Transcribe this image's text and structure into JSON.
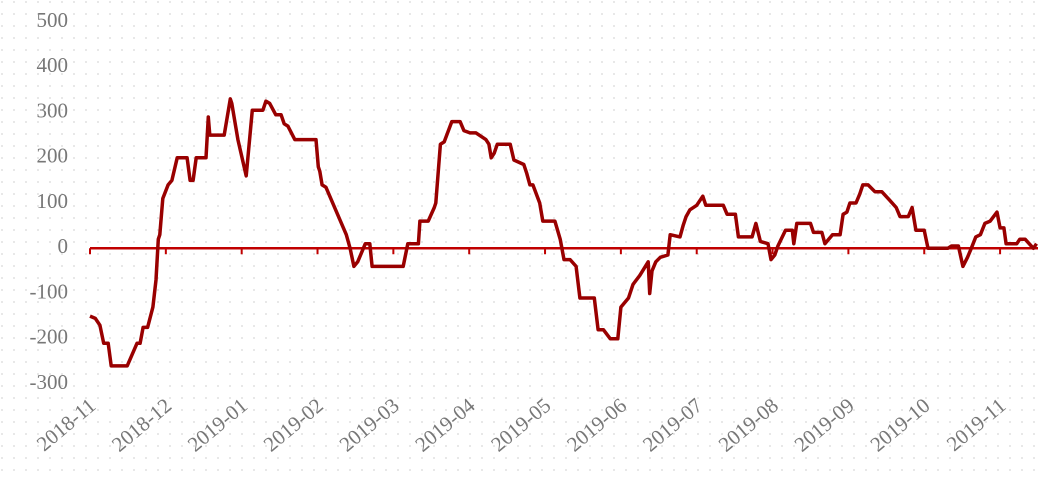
{
  "chart_data": {
    "type": "line",
    "x": [
      0,
      0.07,
      0.13,
      0.18,
      0.24,
      0.28,
      0.49,
      0.62,
      0.66,
      0.7,
      0.76,
      0.83,
      0.87,
      0.9,
      0.92,
      0.96,
      1.03,
      1.08,
      1.15,
      1.28,
      1.32,
      1.36,
      1.4,
      1.53,
      1.56,
      1.58,
      1.77,
      1.85,
      1.87,
      1.95,
      2.06,
      2.14,
      2.28,
      2.32,
      2.37,
      2.45,
      2.52,
      2.56,
      2.61,
      2.7,
      2.98,
      3.01,
      3.03,
      3.06,
      3.11,
      3.38,
      3.43,
      3.48,
      3.53,
      3.63,
      3.69,
      3.72,
      4.13,
      4.19,
      4.33,
      4.35,
      4.46,
      4.54,
      4.56,
      4.62,
      4.67,
      4.77,
      4.88,
      4.93,
      5.01,
      5.09,
      5.22,
      5.26,
      5.29,
      5.33,
      5.37,
      5.54,
      5.59,
      5.72,
      5.76,
      5.8,
      5.84,
      5.93,
      5.97,
      6.13,
      6.2,
      6.25,
      6.33,
      6.41,
      6.46,
      6.65,
      6.7,
      6.77,
      6.86,
      6.96,
      7.0,
      7.1,
      7.16,
      7.25,
      7.36,
      7.38,
      7.41,
      7.46,
      7.52,
      7.62,
      7.65,
      7.78,
      7.82,
      7.86,
      7.91,
      8.0,
      8.08,
      8.12,
      8.35,
      8.4,
      8.51,
      8.55,
      8.73,
      8.78,
      8.84,
      8.94,
      8.98,
      9.03,
      9.07,
      9.17,
      9.26,
      9.28,
      9.32,
      9.5,
      9.54,
      9.65,
      9.69,
      9.79,
      9.89,
      9.93,
      9.98,
      10.02,
      10.1,
      10.15,
      10.19,
      10.26,
      10.35,
      10.44,
      10.55,
      10.63,
      10.68,
      10.79,
      10.84,
      10.89,
      11.0,
      11.05,
      11.31,
      11.36,
      11.45,
      11.51,
      11.57,
      11.62,
      11.68,
      11.74,
      11.8,
      11.87,
      11.96,
      12.0,
      12.05,
      12.08,
      12.22,
      12.26,
      12.33,
      12.44,
      12.48
    ],
    "series": [
      {
        "color": "#990000",
        "values": [
          -150,
          -155,
          -170,
          -210,
          -210,
          -260,
          -260,
          -210,
          -210,
          -175,
          -175,
          -130,
          -70,
          20,
          30,
          110,
          140,
          150,
          200,
          200,
          150,
          150,
          200,
          200,
          290,
          250,
          250,
          330,
          320,
          240,
          160,
          305,
          305,
          325,
          320,
          295,
          295,
          275,
          270,
          240,
          240,
          180,
          170,
          140,
          135,
          30,
          0,
          -40,
          -30,
          10,
          10,
          -40,
          -40,
          10,
          10,
          60,
          60,
          90,
          100,
          230,
          235,
          280,
          280,
          260,
          255,
          255,
          240,
          230,
          200,
          210,
          230,
          230,
          195,
          185,
          165,
          140,
          140,
          100,
          60,
          60,
          20,
          -25,
          -25,
          -40,
          -110,
          -110,
          -180,
          -180,
          -200,
          -200,
          -130,
          -110,
          -80,
          -60,
          -30,
          -100,
          -50,
          -30,
          -20,
          -15,
          30,
          25,
          50,
          70,
          85,
          95,
          115,
          95,
          95,
          75,
          75,
          25,
          25,
          55,
          15,
          10,
          -25,
          -15,
          5,
          40,
          40,
          10,
          55,
          55,
          35,
          35,
          10,
          30,
          30,
          75,
          80,
          100,
          100,
          120,
          140,
          140,
          125,
          125,
          105,
          90,
          70,
          70,
          90,
          40,
          40,
          0,
          0,
          5,
          5,
          -40,
          -20,
          0,
          25,
          30,
          55,
          60,
          80,
          45,
          45,
          10,
          10,
          20,
          20,
          0,
          10
        ]
      }
    ],
    "xlim": [
      0,
      12.5
    ],
    "xticks": [
      {
        "value": 0,
        "label": "2018-11"
      },
      {
        "value": 1,
        "label": "2018-12"
      },
      {
        "value": 2,
        "label": "2019-01"
      },
      {
        "value": 3,
        "label": "2019-02"
      },
      {
        "value": 4,
        "label": "2019-03"
      },
      {
        "value": 5,
        "label": "2019-04"
      },
      {
        "value": 6,
        "label": "2019-05"
      },
      {
        "value": 7,
        "label": "2019-06"
      },
      {
        "value": 8,
        "label": "2019-07"
      },
      {
        "value": 9,
        "label": "2019-08"
      },
      {
        "value": 10,
        "label": "2019-09"
      },
      {
        "value": 11,
        "label": "2019-10"
      },
      {
        "value": 12,
        "label": "2019-11"
      }
    ],
    "ylim": [
      -300,
      500
    ],
    "yticks": [
      -300,
      -200,
      -100,
      0,
      100,
      200,
      300,
      400,
      500
    ],
    "zero_line_color": "#c00000"
  }
}
